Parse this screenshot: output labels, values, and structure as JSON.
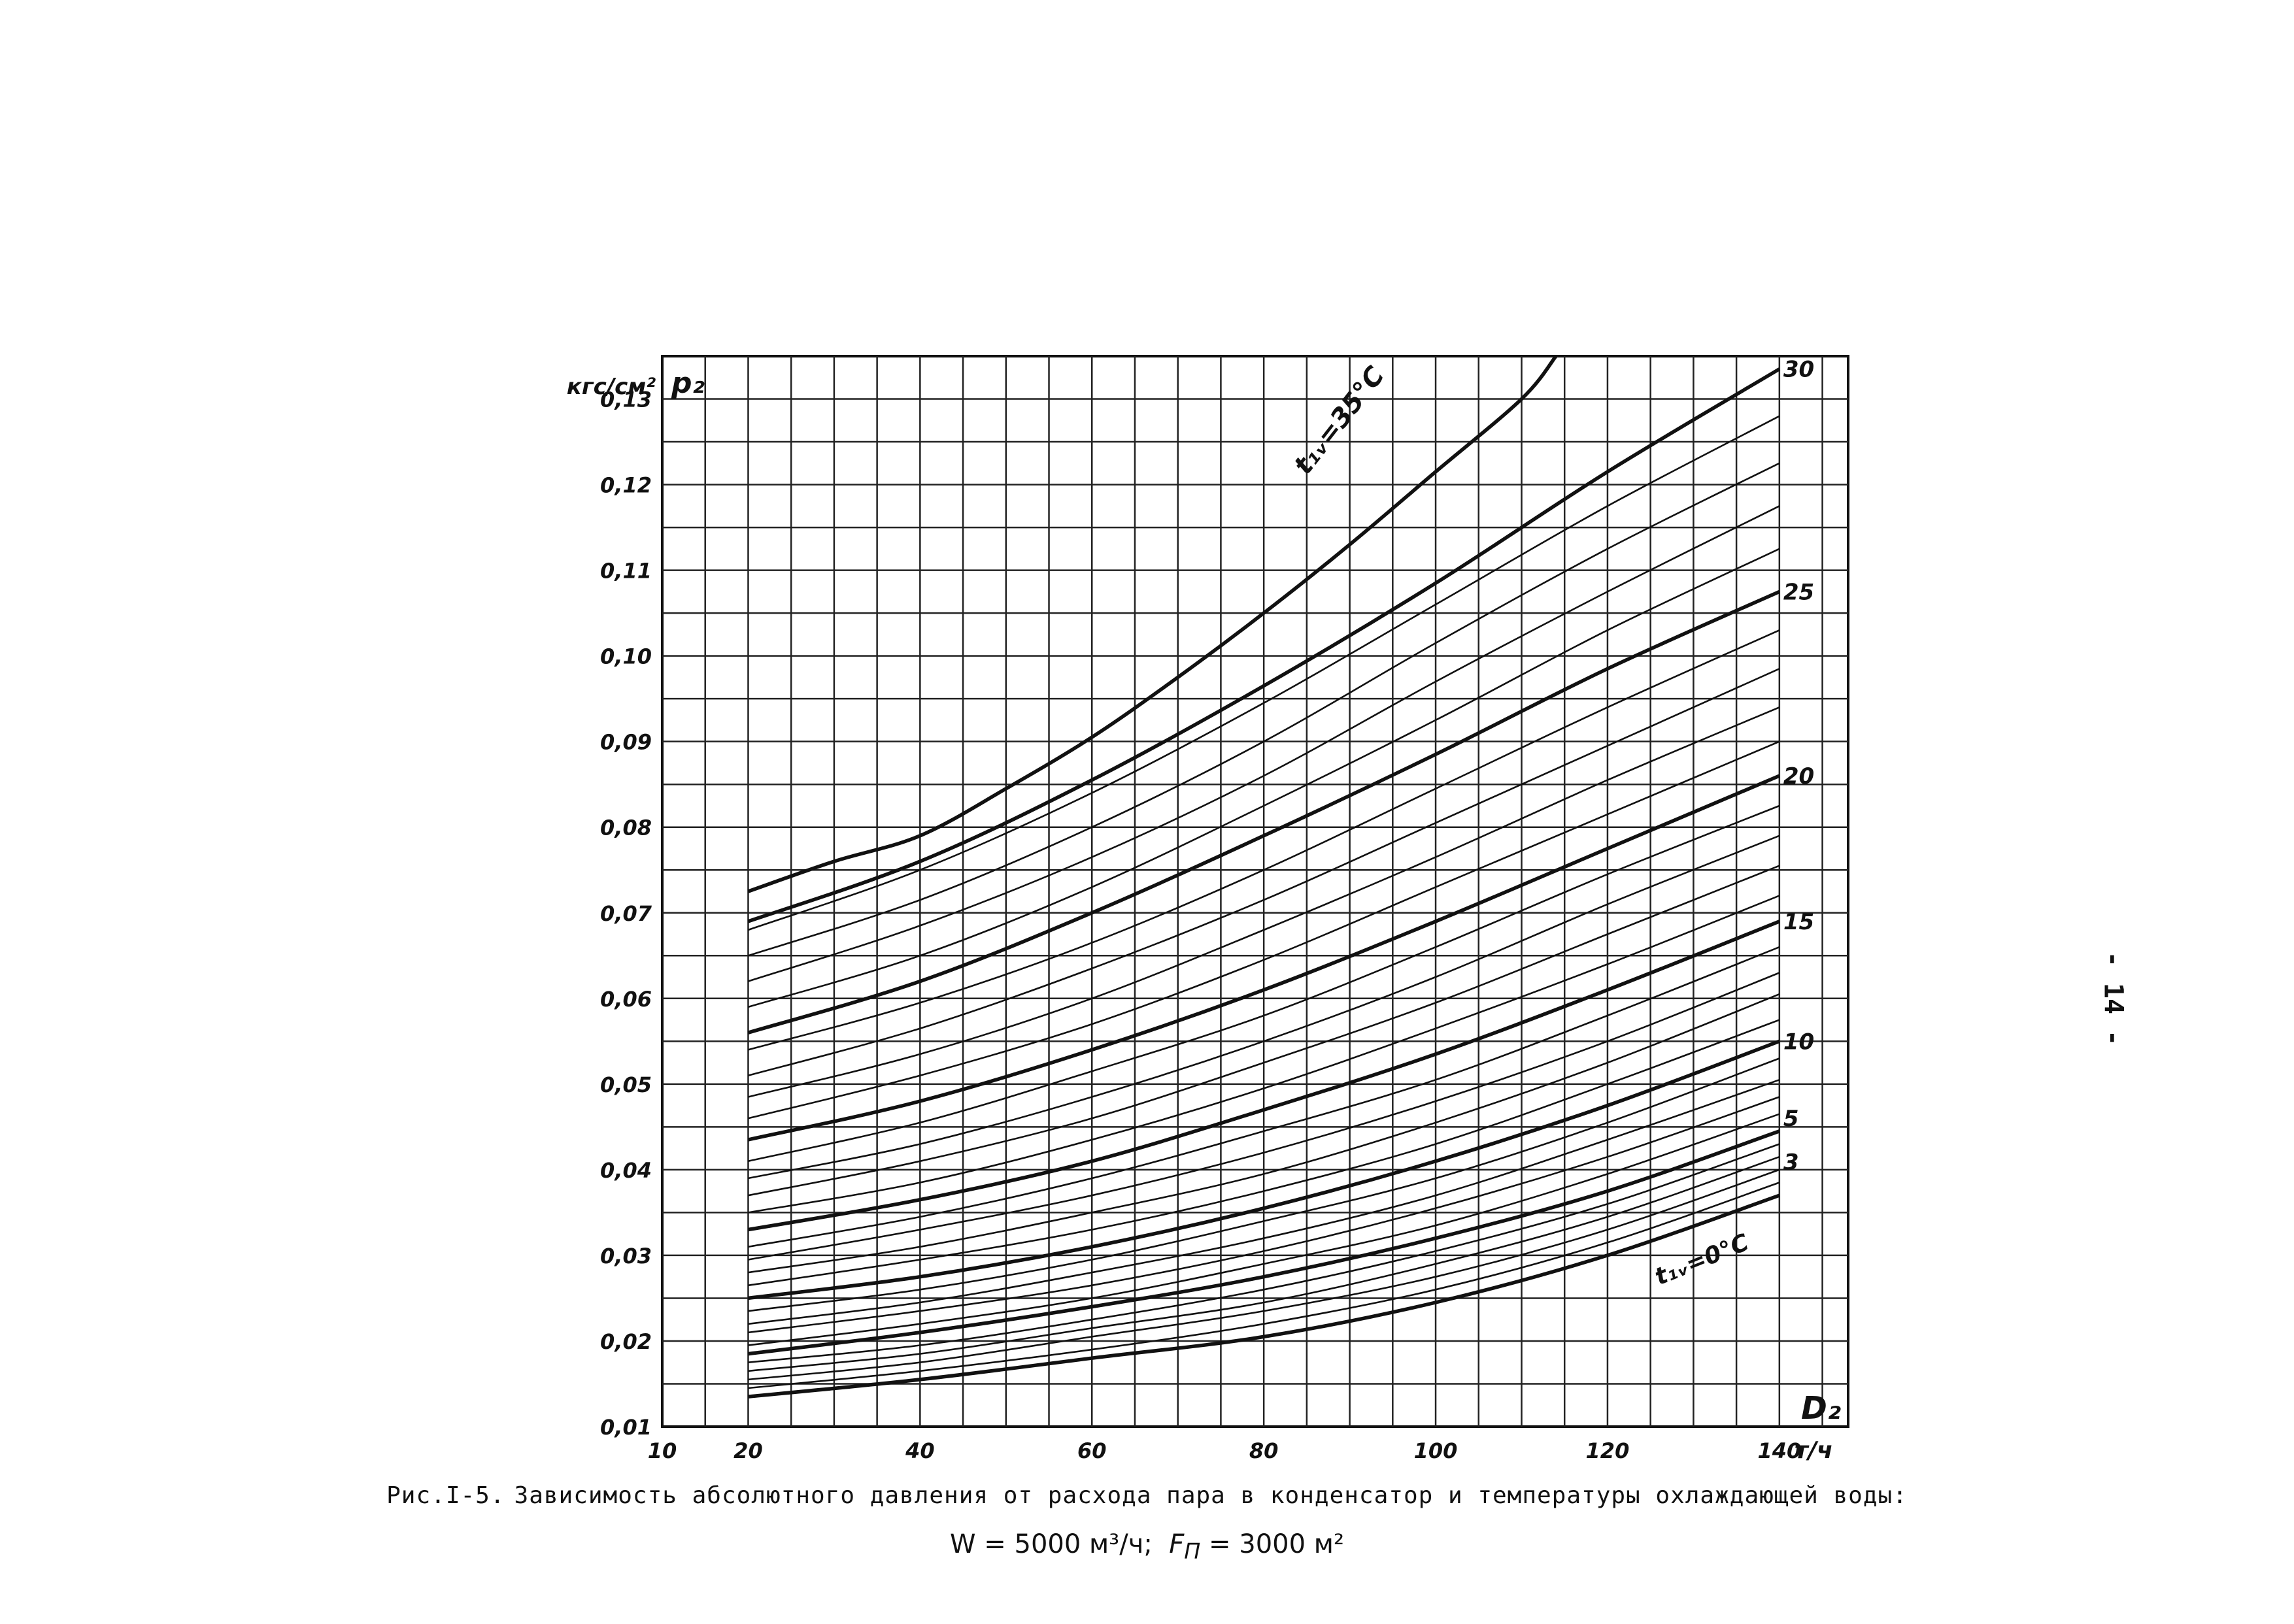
{
  "page_number": "- 14 -",
  "caption": {
    "figure_number": "Рис.I-5.",
    "line1": "Зависимость абсолютного давления от расхода пара в конденсатор и температуры охлаждающей воды:",
    "w_label": "W",
    "w_value": "= 5000 м³/ч;",
    "f_label": "F",
    "f_sub": "П",
    "f_value": "= 3000 м²"
  },
  "chart_data": {
    "type": "line",
    "x_symbol": "D₂",
    "x_unit": "т/ч",
    "y_symbol": "p₂",
    "y_unit": "кгс/см²",
    "xlim": [
      10,
      148
    ],
    "ylim": [
      0.01,
      0.135
    ],
    "x_ticks": [
      10,
      20,
      40,
      60,
      80,
      100,
      120,
      140
    ],
    "x_tick_labels": [
      "10",
      "20",
      "40",
      "60",
      "80",
      "100",
      "120",
      "140"
    ],
    "y_ticks": [
      0.01,
      0.02,
      0.03,
      0.04,
      0.05,
      0.06,
      0.07,
      0.08,
      0.09,
      0.1,
      0.11,
      0.12,
      0.13
    ],
    "y_tick_labels": [
      "0,01",
      "0,02",
      "0,03",
      "0,04",
      "0,05",
      "0,06",
      "0,07",
      "0,08",
      "0,09",
      "0,10",
      "0,11",
      "0,12",
      "0,13"
    ],
    "grid": true,
    "x_range_of_curves": [
      20,
      140
    ],
    "curve_parameter": "t₁ᵥ",
    "curve_labels": [
      {
        "t": 35,
        "text": "t₁ᵥ=35°C"
      },
      {
        "t": 30,
        "text": "30"
      },
      {
        "t": 25,
        "text": "25"
      },
      {
        "t": 20,
        "text": "20"
      },
      {
        "t": 15,
        "text": "15"
      },
      {
        "t": 10,
        "text": "10"
      },
      {
        "t": 5,
        "text": "5"
      },
      {
        "t": 3,
        "text": "3"
      },
      {
        "t": 0,
        "text": "t₁ᵥ=0°C"
      }
    ],
    "bold_curves": [
      0,
      5,
      10,
      15,
      20,
      25,
      30,
      35
    ],
    "series": [
      {
        "t": 0,
        "values": [
          [
            20,
            0.0135
          ],
          [
            40,
            0.0155
          ],
          [
            60,
            0.018
          ],
          [
            80,
            0.0205
          ],
          [
            100,
            0.0245
          ],
          [
            120,
            0.03
          ],
          [
            140,
            0.037
          ]
        ]
      },
      {
        "t": 1,
        "values": [
          [
            20,
            0.0145
          ],
          [
            40,
            0.0165
          ],
          [
            60,
            0.019
          ],
          [
            80,
            0.022
          ],
          [
            100,
            0.026
          ],
          [
            120,
            0.0315
          ],
          [
            140,
            0.0385
          ]
        ]
      },
      {
        "t": 2,
        "values": [
          [
            20,
            0.0155
          ],
          [
            40,
            0.0175
          ],
          [
            60,
            0.0205
          ],
          [
            80,
            0.0235
          ],
          [
            100,
            0.0275
          ],
          [
            120,
            0.033
          ],
          [
            140,
            0.04
          ]
        ]
      },
      {
        "t": 3,
        "values": [
          [
            20,
            0.0165
          ],
          [
            40,
            0.0185
          ],
          [
            60,
            0.0215
          ],
          [
            80,
            0.0245
          ],
          [
            100,
            0.029
          ],
          [
            120,
            0.0345
          ],
          [
            140,
            0.0415
          ]
        ]
      },
      {
        "t": 4,
        "values": [
          [
            20,
            0.0175
          ],
          [
            40,
            0.0195
          ],
          [
            60,
            0.0225
          ],
          [
            80,
            0.026
          ],
          [
            100,
            0.0305
          ],
          [
            120,
            0.036
          ],
          [
            140,
            0.043
          ]
        ]
      },
      {
        "t": 5,
        "values": [
          [
            20,
            0.0185
          ],
          [
            40,
            0.021
          ],
          [
            60,
            0.024
          ],
          [
            80,
            0.0275
          ],
          [
            100,
            0.032
          ],
          [
            120,
            0.0375
          ],
          [
            140,
            0.0445
          ]
        ]
      },
      {
        "t": 6,
        "values": [
          [
            20,
            0.0195
          ],
          [
            40,
            0.022
          ],
          [
            60,
            0.025
          ],
          [
            80,
            0.029
          ],
          [
            100,
            0.0335
          ],
          [
            120,
            0.0395
          ],
          [
            140,
            0.0465
          ]
        ]
      },
      {
        "t": 7,
        "values": [
          [
            20,
            0.021
          ],
          [
            40,
            0.0235
          ],
          [
            60,
            0.0265
          ],
          [
            80,
            0.0305
          ],
          [
            100,
            0.0355
          ],
          [
            120,
            0.0415
          ],
          [
            140,
            0.0485
          ]
        ]
      },
      {
        "t": 8,
        "values": [
          [
            20,
            0.022
          ],
          [
            40,
            0.0245
          ],
          [
            60,
            0.028
          ],
          [
            80,
            0.032
          ],
          [
            100,
            0.037
          ],
          [
            120,
            0.0435
          ],
          [
            140,
            0.0505
          ]
        ]
      },
      {
        "t": 9,
        "values": [
          [
            20,
            0.0235
          ],
          [
            40,
            0.026
          ],
          [
            60,
            0.0295
          ],
          [
            80,
            0.034
          ],
          [
            100,
            0.039
          ],
          [
            120,
            0.0455
          ],
          [
            140,
            0.053
          ]
        ]
      },
      {
        "t": 10,
        "values": [
          [
            20,
            0.025
          ],
          [
            40,
            0.0275
          ],
          [
            60,
            0.031
          ],
          [
            80,
            0.0355
          ],
          [
            100,
            0.041
          ],
          [
            120,
            0.0475
          ],
          [
            140,
            0.055
          ]
        ]
      },
      {
        "t": 11,
        "values": [
          [
            20,
            0.0265
          ],
          [
            40,
            0.0295
          ],
          [
            60,
            0.033
          ],
          [
            80,
            0.0375
          ],
          [
            100,
            0.043
          ],
          [
            120,
            0.05
          ],
          [
            140,
            0.0575
          ]
        ]
      },
      {
        "t": 12,
        "values": [
          [
            20,
            0.028
          ],
          [
            40,
            0.031
          ],
          [
            60,
            0.035
          ],
          [
            80,
            0.0395
          ],
          [
            100,
            0.0455
          ],
          [
            120,
            0.0525
          ],
          [
            140,
            0.0605
          ]
        ]
      },
      {
        "t": 13,
        "values": [
          [
            20,
            0.0295
          ],
          [
            40,
            0.033
          ],
          [
            60,
            0.037
          ],
          [
            80,
            0.042
          ],
          [
            100,
            0.048
          ],
          [
            120,
            0.055
          ],
          [
            140,
            0.063
          ]
        ]
      },
      {
        "t": 14,
        "values": [
          [
            20,
            0.031
          ],
          [
            40,
            0.0345
          ],
          [
            60,
            0.039
          ],
          [
            80,
            0.0445
          ],
          [
            100,
            0.0505
          ],
          [
            120,
            0.058
          ],
          [
            140,
            0.066
          ]
        ]
      },
      {
        "t": 15,
        "values": [
          [
            20,
            0.033
          ],
          [
            40,
            0.0365
          ],
          [
            60,
            0.041
          ],
          [
            80,
            0.047
          ],
          [
            100,
            0.0535
          ],
          [
            120,
            0.061
          ],
          [
            140,
            0.069
          ]
        ]
      },
      {
        "t": 16,
        "values": [
          [
            20,
            0.035
          ],
          [
            40,
            0.0385
          ],
          [
            60,
            0.0435
          ],
          [
            80,
            0.0495
          ],
          [
            100,
            0.0565
          ],
          [
            120,
            0.064
          ],
          [
            140,
            0.072
          ]
        ]
      },
      {
        "t": 17,
        "values": [
          [
            20,
            0.037
          ],
          [
            40,
            0.041
          ],
          [
            60,
            0.046
          ],
          [
            80,
            0.0525
          ],
          [
            100,
            0.0595
          ],
          [
            120,
            0.0675
          ],
          [
            140,
            0.0755
          ]
        ]
      },
      {
        "t": 18,
        "values": [
          [
            20,
            0.039
          ],
          [
            40,
            0.043
          ],
          [
            60,
            0.0485
          ],
          [
            80,
            0.055
          ],
          [
            100,
            0.0625
          ],
          [
            120,
            0.071
          ],
          [
            140,
            0.079
          ]
        ]
      },
      {
        "t": 19,
        "values": [
          [
            20,
            0.041
          ],
          [
            40,
            0.0455
          ],
          [
            60,
            0.0515
          ],
          [
            80,
            0.058
          ],
          [
            100,
            0.066
          ],
          [
            120,
            0.0745
          ],
          [
            140,
            0.0825
          ]
        ]
      },
      {
        "t": 20,
        "values": [
          [
            20,
            0.0435
          ],
          [
            40,
            0.048
          ],
          [
            60,
            0.054
          ],
          [
            80,
            0.061
          ],
          [
            100,
            0.069
          ],
          [
            120,
            0.0775
          ],
          [
            140,
            0.086
          ]
        ]
      },
      {
        "t": 21,
        "values": [
          [
            20,
            0.046
          ],
          [
            40,
            0.051
          ],
          [
            60,
            0.057
          ],
          [
            80,
            0.0645
          ],
          [
            100,
            0.073
          ],
          [
            120,
            0.0815
          ],
          [
            140,
            0.09
          ]
        ]
      },
      {
        "t": 22,
        "values": [
          [
            20,
            0.0485
          ],
          [
            40,
            0.0535
          ],
          [
            60,
            0.06
          ],
          [
            80,
            0.068
          ],
          [
            100,
            0.0765
          ],
          [
            120,
            0.0855
          ],
          [
            140,
            0.094
          ]
        ]
      },
      {
        "t": 23,
        "values": [
          [
            20,
            0.051
          ],
          [
            40,
            0.0565
          ],
          [
            60,
            0.0635
          ],
          [
            80,
            0.0715
          ],
          [
            100,
            0.0805
          ],
          [
            120,
            0.0895
          ],
          [
            140,
            0.0985
          ]
        ]
      },
      {
        "t": 24,
        "values": [
          [
            20,
            0.054
          ],
          [
            40,
            0.0595
          ],
          [
            60,
            0.0665
          ],
          [
            80,
            0.075
          ],
          [
            100,
            0.0845
          ],
          [
            120,
            0.094
          ],
          [
            140,
            0.103
          ]
        ]
      },
      {
        "t": 25,
        "values": [
          [
            20,
            0.056
          ],
          [
            40,
            0.062
          ],
          [
            60,
            0.07
          ],
          [
            80,
            0.079
          ],
          [
            100,
            0.0885
          ],
          [
            120,
            0.0985
          ],
          [
            140,
            0.1075
          ]
        ]
      },
      {
        "t": 26,
        "values": [
          [
            20,
            0.059
          ],
          [
            40,
            0.065
          ],
          [
            60,
            0.073
          ],
          [
            80,
            0.0825
          ],
          [
            100,
            0.0925
          ],
          [
            120,
            0.103
          ],
          [
            140,
            0.1125
          ]
        ]
      },
      {
        "t": 27,
        "values": [
          [
            20,
            0.062
          ],
          [
            40,
            0.0685
          ],
          [
            60,
            0.0765
          ],
          [
            80,
            0.086
          ],
          [
            100,
            0.097
          ],
          [
            120,
            0.1075
          ],
          [
            140,
            0.1175
          ]
        ]
      },
      {
        "t": 28,
        "values": [
          [
            20,
            0.065
          ],
          [
            40,
            0.0715
          ],
          [
            60,
            0.08
          ],
          [
            80,
            0.09
          ],
          [
            100,
            0.1015
          ],
          [
            120,
            0.1125
          ],
          [
            140,
            0.1225
          ]
        ]
      },
      {
        "t": 29,
        "values": [
          [
            20,
            0.068
          ],
          [
            40,
            0.075
          ],
          [
            60,
            0.084
          ],
          [
            80,
            0.0945
          ],
          [
            100,
            0.106
          ],
          [
            120,
            0.1175
          ],
          [
            140,
            0.128
          ]
        ]
      },
      {
        "t": 30,
        "values": [
          [
            20,
            0.069
          ],
          [
            40,
            0.076
          ],
          [
            60,
            0.0855
          ],
          [
            80,
            0.0965
          ],
          [
            100,
            0.1085
          ],
          [
            120,
            0.1215
          ],
          [
            140,
            0.1335
          ]
        ]
      },
      {
        "t": 35,
        "values": [
          [
            20,
            0.0725
          ],
          [
            30,
            0.076
          ],
          [
            40,
            0.079
          ],
          [
            50,
            0.0845
          ],
          [
            60,
            0.0905
          ],
          [
            70,
            0.0975
          ],
          [
            80,
            0.105
          ],
          [
            90,
            0.113
          ],
          [
            100,
            0.1215
          ],
          [
            110,
            0.13
          ],
          [
            114,
            0.135
          ]
        ]
      }
    ]
  }
}
